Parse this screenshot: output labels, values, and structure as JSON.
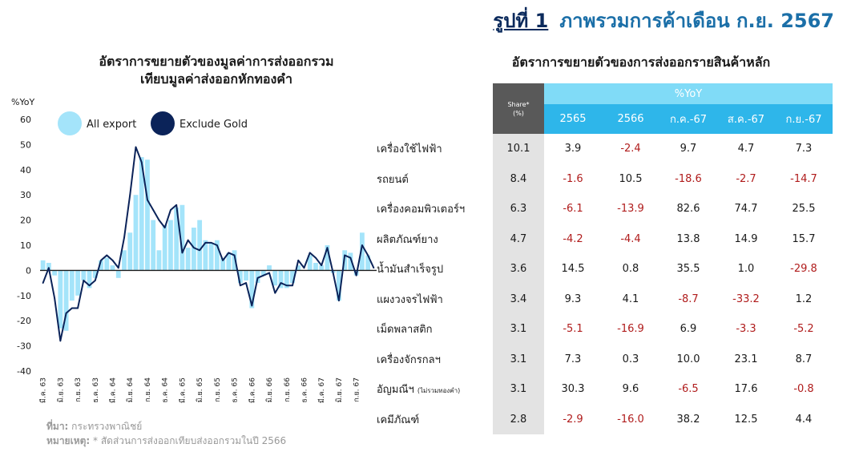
{
  "figure": {
    "number": "รูปที่ 1",
    "title": "ภาพรวมการค้าเดือน ก.ย. 2567"
  },
  "left_title_line1": "อัตราการขยายตัวของมูลค่าการส่งออกรวม",
  "left_title_line2": "เทียบมูลค่าส่งออกหักทองคำ",
  "source_label": "ที่มา:",
  "source_text": " กระทรวงพาณิชย์",
  "note_label": "หมายเหตุ:",
  "note_text": " * สัดส่วนการส่งออกเทียบส่งออกรวมในปี 2566",
  "colors": {
    "bar": "#a4e4fa",
    "line": "#0b2359",
    "title_num": "#0b2a5c",
    "title_text": "#1b6fa8"
  },
  "chart_data": {
    "type": "bar",
    "ylabel": "%YoY",
    "ylim": [
      -40,
      60
    ],
    "yticks": [
      -40,
      -30,
      -20,
      -10,
      0,
      10,
      20,
      30,
      40,
      50,
      60
    ],
    "legend": [
      "All export",
      "Exclude Gold"
    ],
    "legend_placement": "top-left",
    "xtick_labels": [
      "มี.ค. 63",
      "มิ.ย. 63",
      "ก.ย. 63",
      "ธ.ค. 63",
      "มี.ค. 64",
      "มิ.ย. 64",
      "ก.ย. 64",
      "ธ.ค. 64",
      "มี.ค. 65",
      "มิ.ย. 65",
      "ก.ย. 65",
      "ธ.ค. 65",
      "มี.ค. 66",
      "มิ.ย. 66",
      "ก.ย. 66",
      "ธ.ค. 66",
      "มี.ค. 67",
      "มิ.ย. 67",
      "ก.ย. 67"
    ],
    "series": [
      {
        "name": "All export",
        "kind": "bar",
        "values": [
          4,
          3,
          -2,
          -23,
          -24,
          -12,
          -10,
          -4,
          -7,
          -3,
          4,
          5,
          2,
          -3,
          8,
          15,
          30,
          45,
          44,
          20,
          8,
          18,
          20,
          25,
          26,
          9,
          17,
          20,
          12,
          11,
          12,
          5,
          7,
          8,
          -5,
          -4,
          -15,
          -5,
          -2,
          2,
          -6,
          -7,
          -7,
          -5,
          2,
          0,
          6,
          3,
          2,
          10,
          -1,
          -12,
          8,
          7,
          -2,
          15,
          6,
          0
        ]
      },
      {
        "name": "Exclude Gold",
        "kind": "line",
        "values": [
          -5,
          1,
          -11,
          -28,
          -17,
          -15,
          -15,
          -4,
          -6,
          -4,
          4,
          6,
          4,
          1,
          13,
          30,
          49,
          43,
          28,
          24,
          20,
          17,
          24,
          26,
          7,
          12,
          9,
          8,
          11,
          11,
          10,
          4,
          7,
          6,
          -6,
          -5,
          -14,
          -3,
          -2,
          -1,
          -9,
          -5,
          -6,
          -6,
          4,
          1,
          7,
          5,
          2,
          9,
          -1,
          -12,
          6,
          5,
          -2,
          10,
          6,
          1
        ]
      }
    ]
  },
  "table": {
    "title": "อัตราการขยายตัวของการส่งออกรายสินค้าหลัก",
    "share_header": "Share*",
    "share_unit": "(%)",
    "group_header": "%YoY",
    "columns": [
      "2565",
      "2566",
      "ก.ค.-67",
      "ส.ค.-67",
      "ก.ย.-67"
    ],
    "rows": [
      {
        "name": "เครื่องใช้ไฟฟ้า",
        "note": "",
        "share": "10.1",
        "values": [
          "3.9",
          "-2.4",
          "9.7",
          "4.7",
          "7.3"
        ]
      },
      {
        "name": "รถยนต์",
        "note": "",
        "share": "8.4",
        "values": [
          "-1.6",
          "10.5",
          "-18.6",
          "-2.7",
          "-14.7"
        ]
      },
      {
        "name": "เครื่องคอมพิวเตอร์ฯ",
        "note": "",
        "share": "6.3",
        "values": [
          "-6.1",
          "-13.9",
          "82.6",
          "74.7",
          "25.5"
        ]
      },
      {
        "name": "ผลิตภัณฑ์ยาง",
        "note": "",
        "share": "4.7",
        "values": [
          "-4.2",
          "-4.4",
          "13.8",
          "14.9",
          "15.7"
        ]
      },
      {
        "name": "น้ำมันสำเร็จรูป",
        "note": "",
        "share": "3.6",
        "values": [
          "14.5",
          "0.8",
          "35.5",
          "1.0",
          "-29.8"
        ]
      },
      {
        "name": "แผงวงจรไฟฟ้า",
        "note": "",
        "share": "3.4",
        "values": [
          "9.3",
          "4.1",
          "-8.7",
          "-33.2",
          "1.2"
        ]
      },
      {
        "name": "เม็ดพลาสติก",
        "note": "",
        "share": "3.1",
        "values": [
          "-5.1",
          "-16.9",
          "6.9",
          "-3.3",
          "-5.2"
        ]
      },
      {
        "name": "เครื่องจักรกลฯ",
        "note": "",
        "share": "3.1",
        "values": [
          "7.3",
          "0.3",
          "10.0",
          "23.1",
          "8.7"
        ]
      },
      {
        "name": "อัญมณีฯ",
        "note": "(ไม่รวมทองคำ)",
        "share": "3.1",
        "values": [
          "30.3",
          "9.6",
          "-6.5",
          "17.6",
          "-0.8"
        ]
      },
      {
        "name": "เคมีภัณฑ์",
        "note": "",
        "share": "2.8",
        "values": [
          "-2.9",
          "-16.0",
          "38.2",
          "12.5",
          "4.4"
        ]
      }
    ]
  }
}
